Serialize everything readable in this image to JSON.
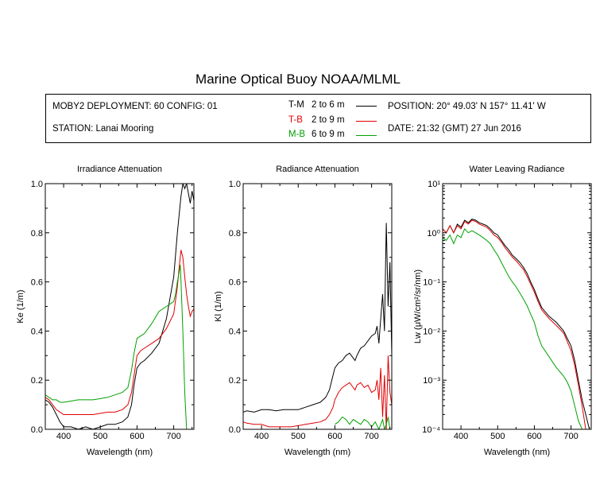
{
  "title": "Marine Optical Buoy NOAA/MLML",
  "info": {
    "deployment": "MOBY2 DEPLOYMENT: 60 CONFIG: 01",
    "station": "STATION: Lanai Mooring",
    "position": "POSITION: 20° 49.03' N   157° 11.41' W",
    "date": "DATE: 21:32 (GMT) 27 Jun 2016",
    "legend": [
      {
        "code": "T-M",
        "range": "2 to 6  m",
        "color": "#000000"
      },
      {
        "code": "T-B",
        "range": "2 to 9  m",
        "color": "#e00000"
      },
      {
        "code": "M-B",
        "range": "6 to 9  m",
        "color": "#00a000"
      }
    ]
  },
  "chart_data": [
    {
      "type": "line",
      "title": "Irradiance Attenuation",
      "xlabel": "Wavelength (nm)",
      "ylabel": "Ke  (1/m)",
      "xlim": [
        350,
        755
      ],
      "ylim": [
        0,
        1.0
      ],
      "yscale": "linear",
      "xticks": [
        400,
        500,
        600,
        700
      ],
      "yticks": [
        0.0,
        0.2,
        0.4,
        0.6,
        0.8,
        1.0
      ],
      "yticklabels": [
        "0.0",
        "0.2",
        "0.4",
        "0.6",
        "0.8",
        "1.0"
      ],
      "grid": false,
      "series": [
        {
          "name": "T-M",
          "color": "#000000",
          "x": [
            350,
            360,
            370,
            380,
            390,
            400,
            420,
            440,
            460,
            480,
            500,
            520,
            540,
            560,
            575,
            585,
            592,
            600,
            610,
            620,
            640,
            660,
            680,
            700,
            710,
            720,
            725,
            730,
            735,
            740,
            745,
            750,
            755
          ],
          "y": [
            0.12,
            0.11,
            0.09,
            0.06,
            0.03,
            0.01,
            0.01,
            0.0,
            0.01,
            0.0,
            0.01,
            0.02,
            0.02,
            0.03,
            0.05,
            0.1,
            0.18,
            0.25,
            0.27,
            0.28,
            0.31,
            0.35,
            0.45,
            0.62,
            0.8,
            0.95,
            1.0,
            0.98,
            1.0,
            0.96,
            0.92,
            0.97,
            0.93
          ]
        },
        {
          "name": "T-B",
          "color": "#e00000",
          "x": [
            350,
            360,
            370,
            380,
            390,
            400,
            420,
            440,
            460,
            480,
            500,
            520,
            540,
            560,
            575,
            585,
            592,
            600,
            610,
            620,
            640,
            660,
            680,
            700,
            710,
            715,
            720,
            725,
            730,
            735,
            740,
            745,
            750,
            755
          ],
          "y": [
            0.13,
            0.12,
            0.1,
            0.08,
            0.07,
            0.06,
            0.06,
            0.06,
            0.06,
            0.06,
            0.065,
            0.07,
            0.07,
            0.08,
            0.1,
            0.15,
            0.22,
            0.3,
            0.32,
            0.33,
            0.35,
            0.37,
            0.41,
            0.47,
            0.58,
            0.66,
            0.73,
            0.7,
            0.62,
            0.55,
            0.5,
            0.46,
            0.48,
            0.49
          ]
        },
        {
          "name": "M-B",
          "color": "#00a000",
          "x": [
            350,
            360,
            370,
            380,
            390,
            400,
            420,
            440,
            460,
            480,
            500,
            520,
            540,
            560,
            575,
            585,
            592,
            600,
            610,
            620,
            640,
            660,
            680,
            700,
            705,
            710,
            715,
            718,
            720,
            725,
            730,
            735
          ],
          "y": [
            0.14,
            0.13,
            0.12,
            0.12,
            0.11,
            0.11,
            0.115,
            0.12,
            0.12,
            0.12,
            0.125,
            0.13,
            0.14,
            0.15,
            0.17,
            0.24,
            0.31,
            0.37,
            0.38,
            0.39,
            0.43,
            0.48,
            0.5,
            0.52,
            0.55,
            0.6,
            0.64,
            0.67,
            0.6,
            0.4,
            0.15,
            0.0
          ]
        }
      ]
    },
    {
      "type": "line",
      "title": "Radiance Attenuation",
      "xlabel": "Wavelength (nm)",
      "ylabel": "Kl  (1/m)",
      "xlim": [
        350,
        755
      ],
      "ylim": [
        0,
        1.0
      ],
      "yscale": "linear",
      "xticks": [
        400,
        500,
        600,
        700
      ],
      "yticks": [
        0.0,
        0.2,
        0.4,
        0.6,
        0.8,
        1.0
      ],
      "yticklabels": [
        "0.0",
        "0.2",
        "0.4",
        "0.6",
        "0.8",
        "1.0"
      ],
      "grid": false,
      "series": [
        {
          "name": "T-M",
          "color": "#000000",
          "x": [
            350,
            360,
            380,
            400,
            420,
            440,
            460,
            480,
            500,
            520,
            540,
            560,
            575,
            585,
            595,
            600,
            610,
            620,
            630,
            640,
            650,
            655,
            660,
            670,
            680,
            690,
            700,
            710,
            715,
            720,
            725,
            730,
            735,
            740,
            745,
            750,
            755
          ],
          "y": [
            0.07,
            0.075,
            0.07,
            0.08,
            0.08,
            0.075,
            0.08,
            0.08,
            0.08,
            0.09,
            0.1,
            0.11,
            0.13,
            0.16,
            0.22,
            0.25,
            0.27,
            0.28,
            0.3,
            0.31,
            0.29,
            0.28,
            0.3,
            0.33,
            0.34,
            0.36,
            0.38,
            0.39,
            0.42,
            0.35,
            0.45,
            0.55,
            0.4,
            0.84,
            0.5,
            0.68,
            0.3
          ]
        },
        {
          "name": "T-B",
          "color": "#e00000",
          "x": [
            350,
            360,
            380,
            400,
            420,
            440,
            460,
            480,
            500,
            520,
            540,
            560,
            575,
            585,
            595,
            600,
            610,
            620,
            630,
            640,
            650,
            655,
            660,
            670,
            680,
            690,
            700,
            710,
            715,
            720,
            725,
            730,
            735,
            740,
            745,
            750,
            755
          ],
          "y": [
            0.03,
            0.025,
            0.02,
            0.02,
            0.01,
            0.01,
            0.01,
            0.01,
            0.015,
            0.02,
            0.025,
            0.03,
            0.04,
            0.06,
            0.09,
            0.12,
            0.15,
            0.17,
            0.18,
            0.19,
            0.17,
            0.16,
            0.18,
            0.19,
            0.17,
            0.18,
            0.15,
            0.16,
            0.2,
            0.12,
            0.25,
            0.05,
            0.22,
            0.0,
            0.3,
            0.15,
            0.1
          ]
        },
        {
          "name": "M-B",
          "color": "#00a000",
          "x": [
            600,
            610,
            620,
            630,
            640,
            650,
            660,
            670,
            680,
            690,
            700,
            710,
            720,
            730,
            735,
            740,
            745,
            750
          ],
          "y": [
            0.02,
            0.03,
            0.05,
            0.04,
            0.02,
            0.04,
            0.03,
            0.02,
            0.04,
            0.03,
            0.01,
            0.03,
            0.0,
            0.04,
            0.0,
            0.02,
            0.05,
            0.0
          ]
        }
      ]
    },
    {
      "type": "line",
      "title": "Water Leaving Radiance",
      "xlabel": "Wavelength (nm)",
      "ylabel": "Lw  (μW/cm²/sr/nm)",
      "xlim": [
        350,
        755
      ],
      "ylim": [
        0.0001,
        10
      ],
      "yscale": "log",
      "xticks": [
        400,
        500,
        600,
        700
      ],
      "yticks": [
        0.0001,
        0.001,
        0.01,
        0.1,
        1,
        10
      ],
      "yticklabels": [
        "10⁻⁴",
        "10⁻³",
        "10⁻²",
        "10⁻¹",
        "10⁰",
        "10¹"
      ],
      "grid": false,
      "series": [
        {
          "name": "T-M",
          "color": "#000000",
          "x": [
            350,
            360,
            370,
            380,
            390,
            400,
            410,
            420,
            430,
            440,
            450,
            460,
            470,
            480,
            490,
            500,
            510,
            520,
            530,
            540,
            550,
            560,
            570,
            580,
            590,
            600,
            610,
            620,
            640,
            660,
            680,
            690,
            700,
            710,
            720,
            730,
            740,
            750
          ],
          "y": [
            1.2,
            1.0,
            1.4,
            1.0,
            1.5,
            1.3,
            1.8,
            1.6,
            1.9,
            1.8,
            1.6,
            1.5,
            1.4,
            1.2,
            1.0,
            0.9,
            0.7,
            0.55,
            0.45,
            0.35,
            0.3,
            0.25,
            0.2,
            0.15,
            0.1,
            0.07,
            0.045,
            0.03,
            0.02,
            0.015,
            0.01,
            0.007,
            0.005,
            0.0025,
            0.001,
            0.0004,
            0.0002,
            0.0001
          ]
        },
        {
          "name": "T-B",
          "color": "#e00000",
          "x": [
            350,
            360,
            370,
            380,
            390,
            400,
            410,
            420,
            430,
            440,
            450,
            460,
            470,
            480,
            490,
            500,
            510,
            520,
            530,
            540,
            550,
            560,
            570,
            580,
            590,
            600,
            610,
            620,
            640,
            660,
            680,
            690,
            700,
            710,
            720,
            730,
            740
          ],
          "y": [
            1.2,
            1.0,
            1.4,
            1.0,
            1.4,
            1.2,
            1.7,
            1.5,
            1.8,
            1.7,
            1.5,
            1.4,
            1.3,
            1.1,
            0.9,
            0.8,
            0.65,
            0.5,
            0.4,
            0.32,
            0.27,
            0.22,
            0.18,
            0.13,
            0.09,
            0.062,
            0.04,
            0.027,
            0.018,
            0.013,
            0.009,
            0.006,
            0.004,
            0.002,
            0.0008,
            0.0003,
            0.0001
          ]
        },
        {
          "name": "M-B",
          "color": "#00a000",
          "x": [
            350,
            360,
            370,
            380,
            390,
            400,
            410,
            420,
            430,
            440,
            450,
            460,
            470,
            480,
            490,
            500,
            510,
            520,
            530,
            540,
            550,
            560,
            570,
            580,
            590,
            600,
            610,
            620,
            640,
            660,
            680,
            690,
            700,
            710,
            720,
            730
          ],
          "y": [
            0.8,
            0.7,
            0.9,
            0.6,
            0.9,
            0.8,
            1.2,
            1.0,
            1.1,
            1.0,
            0.9,
            0.8,
            0.7,
            0.6,
            0.45,
            0.35,
            0.25,
            0.18,
            0.13,
            0.1,
            0.08,
            0.06,
            0.045,
            0.033,
            0.022,
            0.015,
            0.008,
            0.005,
            0.003,
            0.0018,
            0.0012,
            0.0009,
            0.0006,
            0.0003,
            0.00015,
            0.0001
          ]
        }
      ]
    }
  ]
}
